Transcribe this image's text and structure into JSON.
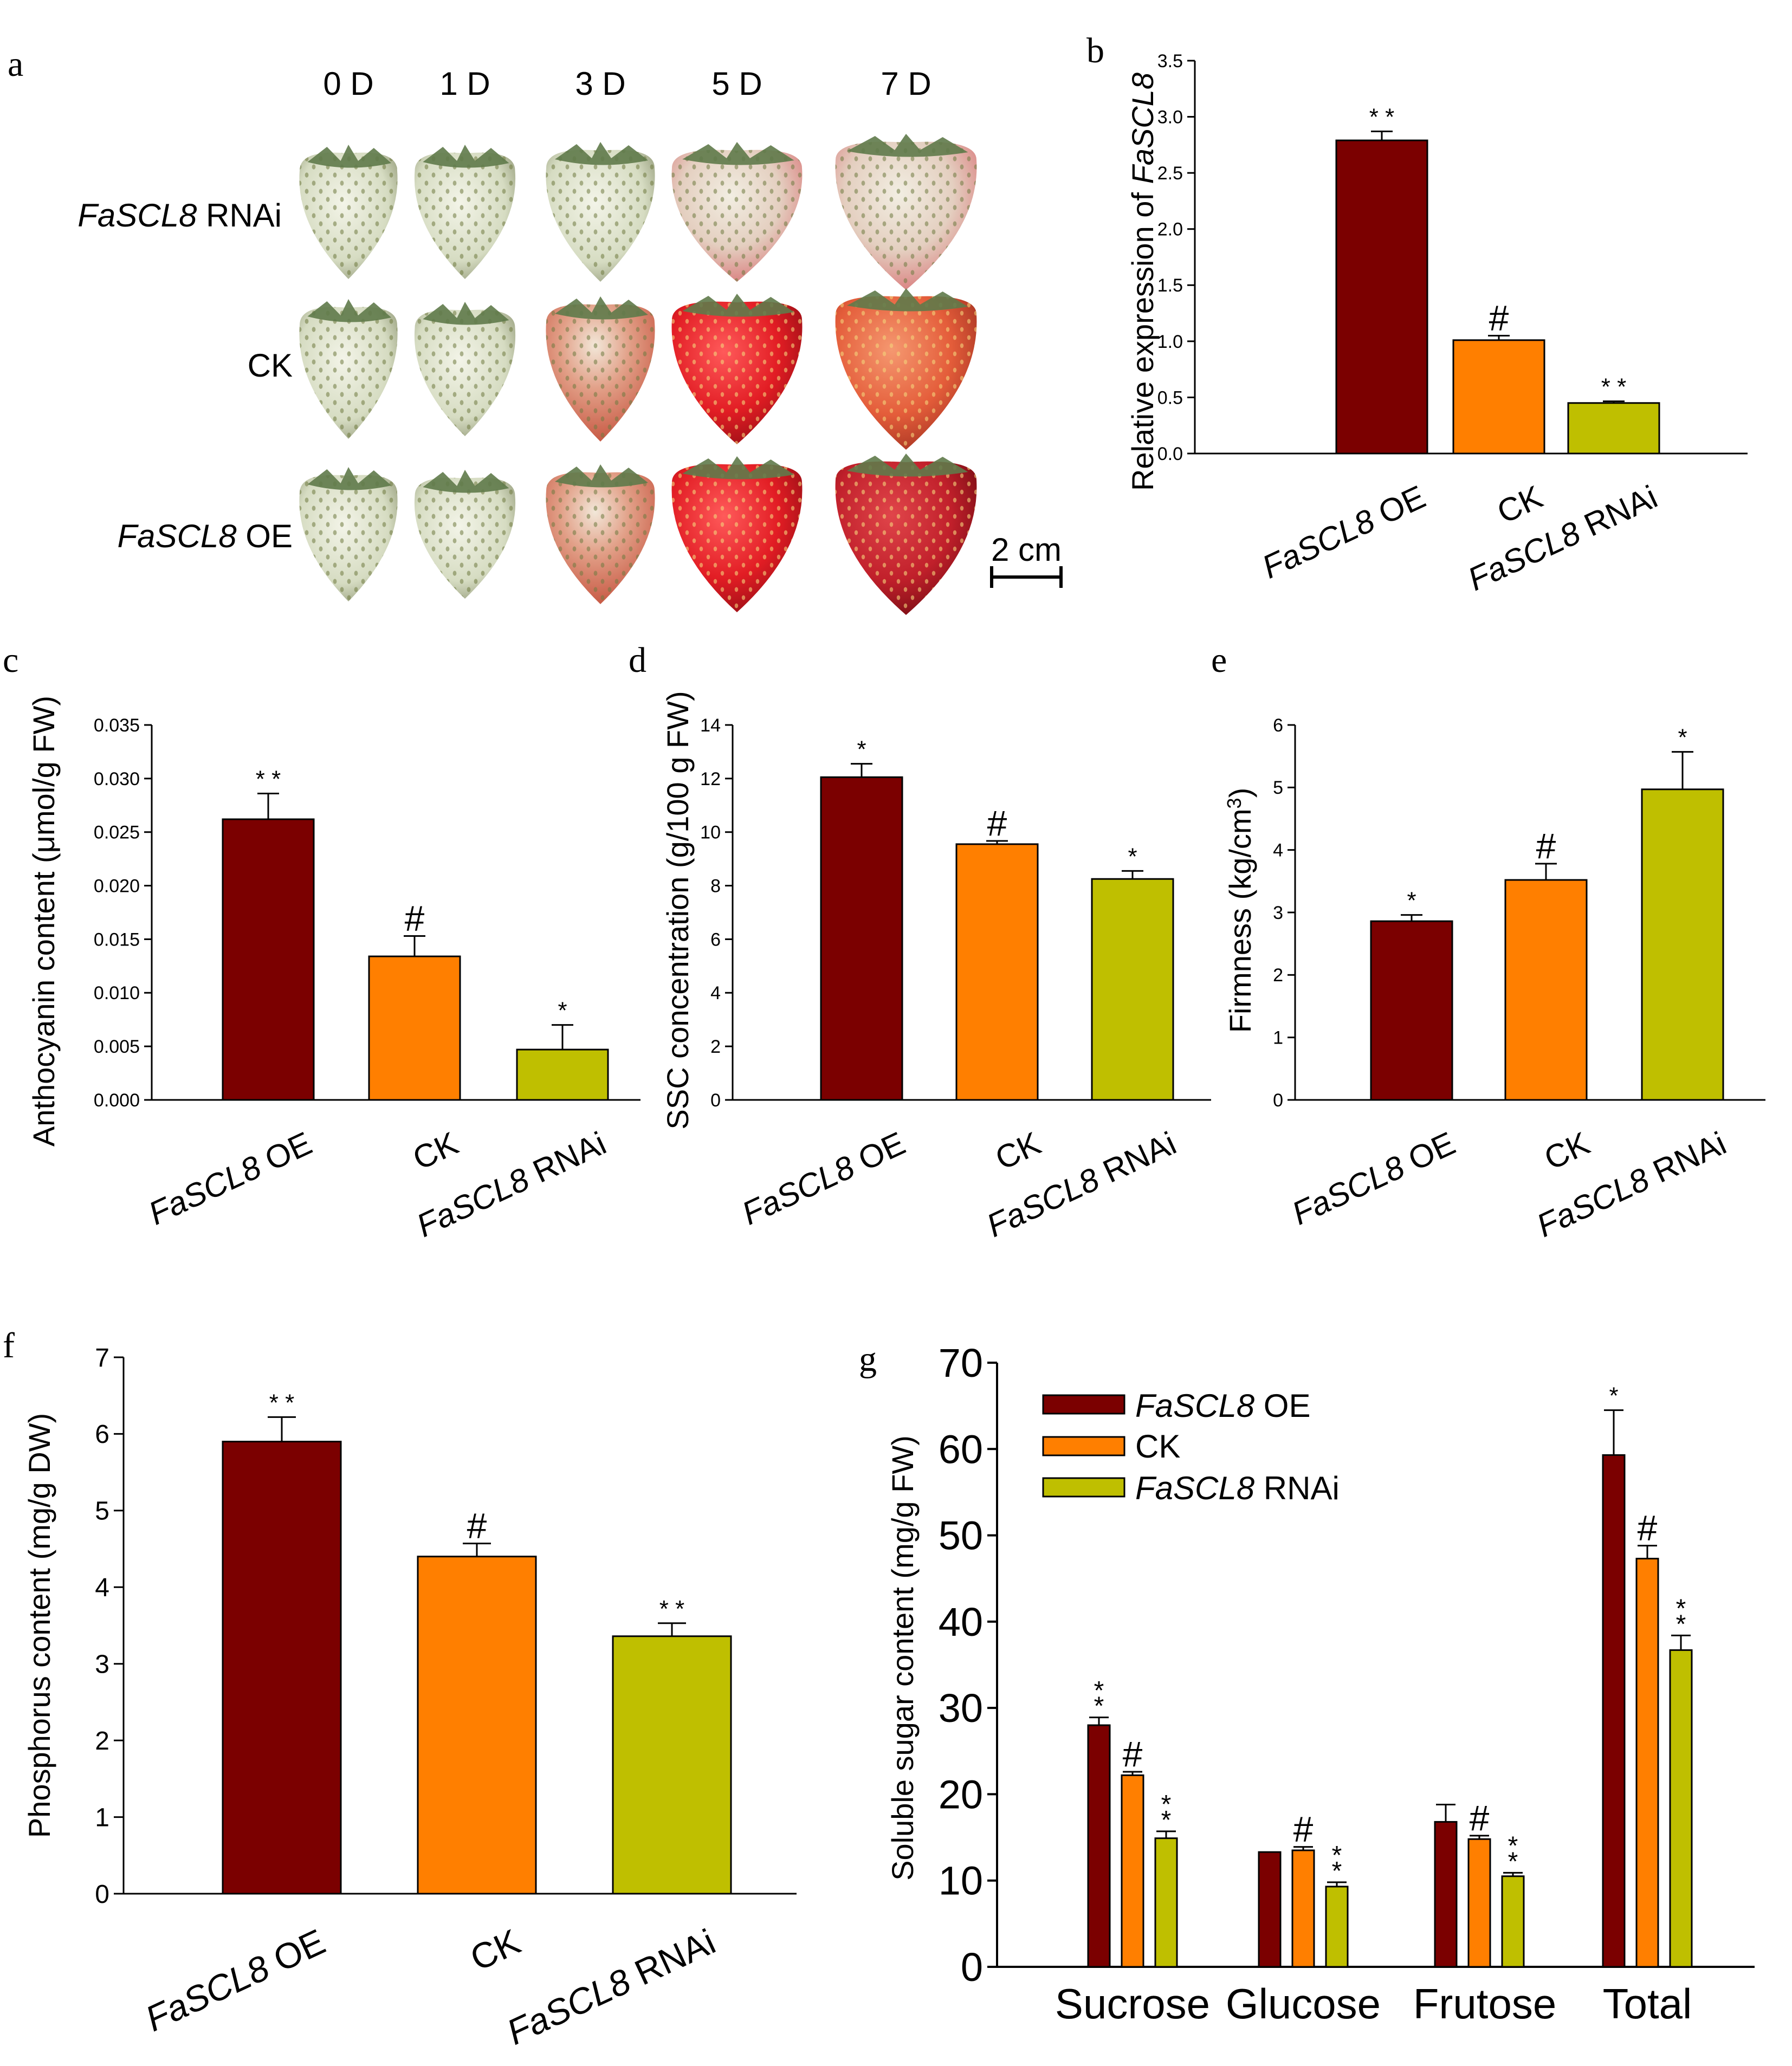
{
  "colors": {
    "oe": "#7b0000",
    "ck": "#ff7f00",
    "rnai": "#bfbf00",
    "axis": "#000000"
  },
  "panel_a": {
    "label": "a",
    "days": [
      "0 D",
      "1 D",
      "3 D",
      "5 D",
      "7 D"
    ],
    "rows": [
      {
        "gene": "FaSCL8",
        "suffix": " RNAi"
      },
      {
        "gene": "",
        "suffix": "CK"
      },
      {
        "gene": "FaSCL8",
        "suffix": " OE"
      }
    ],
    "scale_label": "2 cm"
  },
  "chart_data": [
    {
      "panel": "b",
      "type": "bar",
      "categories": [
        "FaSCL8 OE",
        "CK",
        "FaSCL8 RNAi"
      ],
      "values": [
        2.79,
        1.01,
        0.45
      ],
      "errors": [
        0.08,
        0.04,
        0.015
      ],
      "significance": [
        "**",
        "#",
        "**"
      ],
      "ylabel_prefix": "Relative expression of ",
      "ylabel_gene": "FaSCL8",
      "ylim": [
        0,
        3.5
      ],
      "yticks": [
        "0.0",
        "0.5",
        "1.0",
        "1.5",
        "2.0",
        "2.5",
        "3.0",
        "3.5"
      ]
    },
    {
      "panel": "c",
      "type": "bar",
      "categories": [
        "FaSCL8 OE",
        "CK",
        "FaSCL8 RNAi"
      ],
      "values": [
        0.0262,
        0.0134,
        0.0047
      ],
      "errors": [
        0.0024,
        0.0019,
        0.0023
      ],
      "significance": [
        "**",
        "#",
        "*"
      ],
      "ylabel": "Anthocyanin content (μmol/g FW)",
      "ylim": [
        0,
        0.035
      ],
      "yticks": [
        "0.000",
        "0.005",
        "0.010",
        "0.015",
        "0.020",
        "0.025",
        "0.030",
        "0.035"
      ]
    },
    {
      "panel": "d",
      "type": "bar",
      "categories": [
        "FaSCL8 OE",
        "CK",
        "FaSCL8 RNAi"
      ],
      "values": [
        12.05,
        9.55,
        8.25
      ],
      "errors": [
        0.5,
        0.12,
        0.3
      ],
      "significance": [
        "*",
        "#",
        "*"
      ],
      "ylabel": "SSC concentration (g/100 g FW)",
      "ylim": [
        0,
        14
      ],
      "yticks": [
        "0",
        "2",
        "4",
        "6",
        "8",
        "10",
        "12",
        "14"
      ]
    },
    {
      "panel": "e",
      "type": "bar",
      "categories": [
        "FaSCL8 OE",
        "CK",
        "FaSCL8 RNAi"
      ],
      "values": [
        2.86,
        3.52,
        4.97
      ],
      "errors": [
        0.1,
        0.26,
        0.6
      ],
      "significance": [
        "*",
        "#",
        "*"
      ],
      "ylabel": "Firmness (kg/cm",
      "ylabel_sup": "3",
      "ylabel_end": ")",
      "ylim": [
        0,
        6
      ],
      "yticks": [
        "0",
        "1",
        "2",
        "3",
        "4",
        "5",
        "6"
      ]
    },
    {
      "panel": "f",
      "type": "bar",
      "categories": [
        "FaSCL8 OE",
        "CK",
        "FaSCL8 RNAi"
      ],
      "values": [
        5.9,
        4.4,
        3.36
      ],
      "errors": [
        0.32,
        0.17,
        0.17
      ],
      "significance": [
        "**",
        "#",
        "**"
      ],
      "ylabel": "Phosphorus content (mg/g DW)",
      "ylim": [
        0,
        7
      ],
      "yticks": [
        "0",
        "1",
        "2",
        "3",
        "4",
        "5",
        "6",
        "7"
      ]
    },
    {
      "panel": "g",
      "type": "bar",
      "categories": [
        "Sucrose",
        "Glucose",
        "Frutose",
        "Total"
      ],
      "series": [
        {
          "name": "FaSCL8 OE",
          "gene": "FaSCL8",
          "suffix": " OE",
          "values": [
            28.0,
            13.3,
            16.8,
            59.3
          ],
          "errors": [
            0.9,
            0,
            2.0,
            5.2
          ],
          "significance": [
            "**",
            "",
            "",
            "*"
          ]
        },
        {
          "name": "CK",
          "gene": "",
          "suffix": "CK",
          "values": [
            22.2,
            13.5,
            14.8,
            47.3
          ],
          "errors": [
            0.4,
            0.4,
            0.4,
            1.5
          ],
          "significance": [
            "#",
            "#",
            "#",
            "#"
          ]
        },
        {
          "name": "FaSCL8 RNAi",
          "gene": "FaSCL8",
          "suffix": " RNAi",
          "values": [
            14.9,
            9.3,
            10.5,
            36.7
          ],
          "errors": [
            0.8,
            0.5,
            0.4,
            1.7
          ],
          "significance": [
            "**",
            "**",
            "**",
            "**"
          ]
        }
      ],
      "ylabel": "Soluble sugar content (mg/g FW)",
      "ylim": [
        0,
        70
      ],
      "yticks": [
        "0",
        "10",
        "20",
        "30",
        "40",
        "50",
        "60",
        "70"
      ],
      "legend_position": "top-left"
    }
  ]
}
